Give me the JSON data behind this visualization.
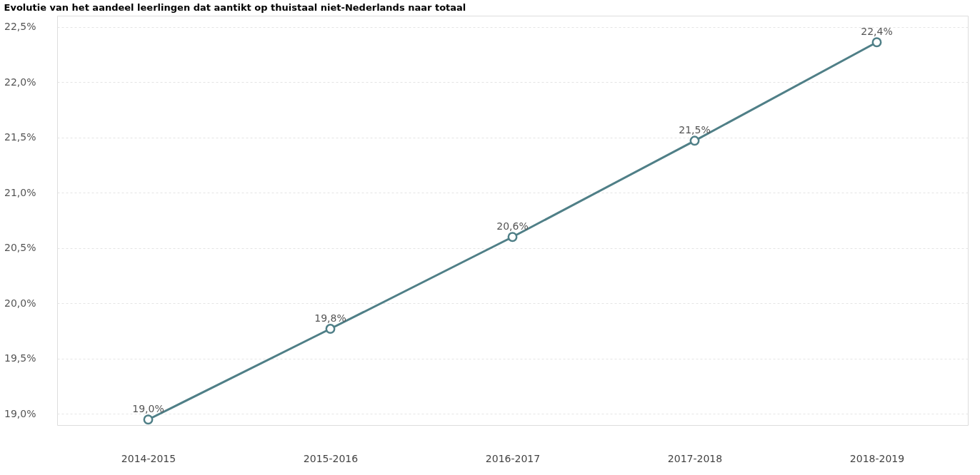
{
  "chart_data": {
    "type": "line",
    "title": "Evolutie van het aandeel leerlingen dat aantikt op thuistaal niet-Nederlands naar totaal",
    "categories": [
      "2014-2015",
      "2015-2016",
      "2016-2017",
      "2017-2018",
      "2018-2019"
    ],
    "series": [
      {
        "color": "#4f7f87",
        "values": [
          18.95,
          19.77,
          20.6,
          21.47,
          22.36
        ],
        "value_labels": [
          "19,0%",
          "19,8%",
          "20,6%",
          "21,5%",
          "22,4%"
        ]
      }
    ],
    "ylim": [
      18.9,
      22.6
    ],
    "yticks": [
      {
        "value": 19.0,
        "label": "19,0%"
      },
      {
        "value": 19.5,
        "label": "19,5%"
      },
      {
        "value": 20.0,
        "label": "20,0%"
      },
      {
        "value": 20.5,
        "label": "20,5%"
      },
      {
        "value": 21.0,
        "label": "21,0%"
      },
      {
        "value": 21.5,
        "label": "21,5%"
      },
      {
        "value": 22.0,
        "label": "22,0%"
      },
      {
        "value": 22.5,
        "label": "22,5%"
      }
    ],
    "grid": "y",
    "marker": "circle",
    "line_style": "solid"
  }
}
